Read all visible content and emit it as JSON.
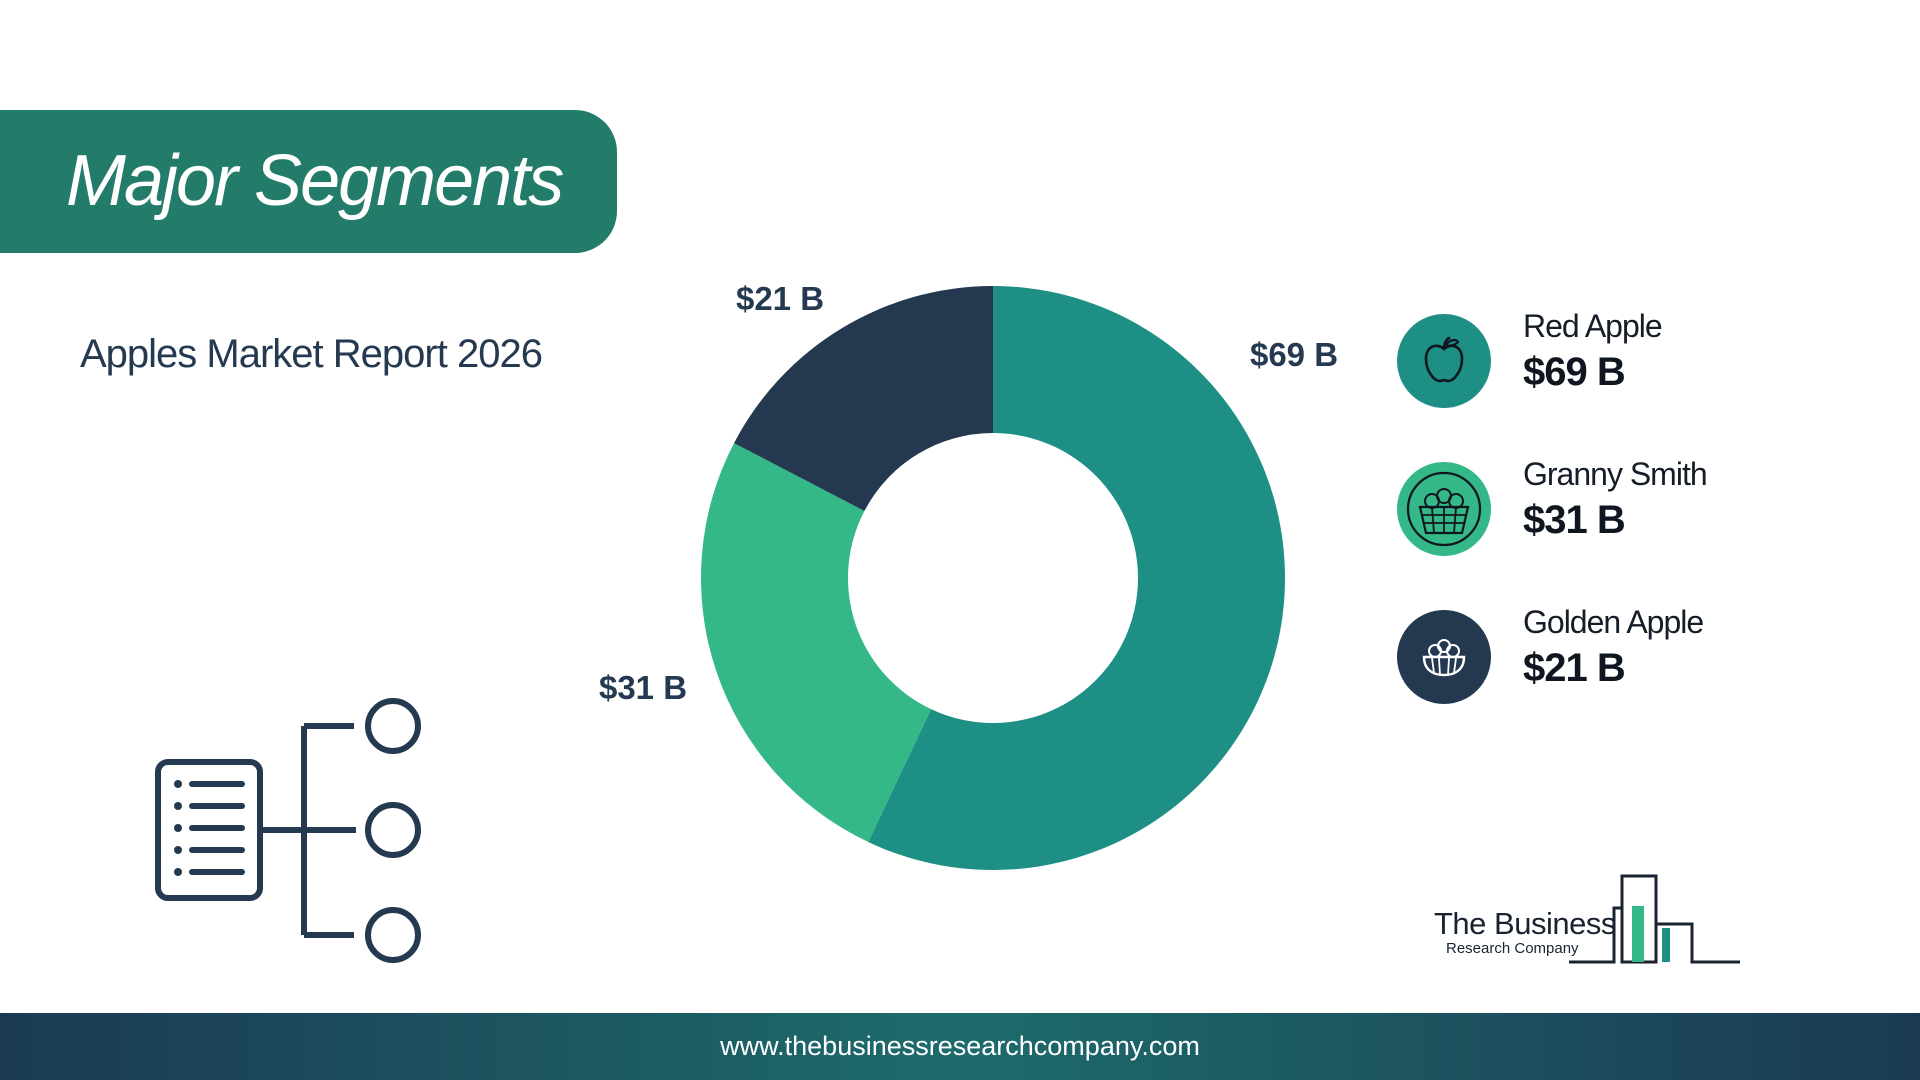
{
  "header": {
    "title": "Major Segments",
    "subtitle": "Apples Market Report 2026"
  },
  "colors": {
    "brand": "#237c6a",
    "red_apple": "#1d8f85",
    "granny_smith": "#34b888",
    "golden_apple": "#24394f",
    "text_dark": "#253a50"
  },
  "chart_data": {
    "type": "pie",
    "donut": true,
    "categories": [
      "Red Apple",
      "Granny Smith",
      "Golden Apple"
    ],
    "values": [
      69,
      31,
      21
    ],
    "unit": "$ B",
    "data_labels": [
      "$69 B",
      "$31 B",
      "$21 B"
    ],
    "colors": [
      "#1d8f85",
      "#34b888",
      "#24394f"
    ],
    "legend_position": "right"
  },
  "legend": {
    "items": [
      {
        "name": "Red Apple",
        "value": "$69 B",
        "color": "#1d8f85",
        "icon": "apple-icon"
      },
      {
        "name": "Granny Smith",
        "value": "$31 B",
        "color": "#34b888",
        "icon": "apple-basket-icon"
      },
      {
        "name": "Golden Apple",
        "value": "$21 B",
        "color": "#24394f",
        "icon": "fruit-bowl-icon"
      }
    ]
  },
  "decor": {
    "icon": "segments-tree-icon"
  },
  "logo": {
    "line1": "The Business",
    "line2": "Research Company"
  },
  "footer": {
    "url": "www.thebusinessresearchcompany.com"
  }
}
